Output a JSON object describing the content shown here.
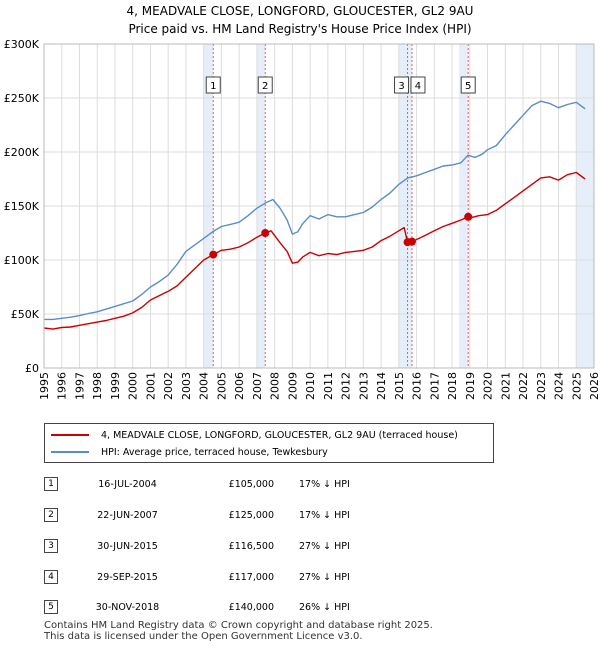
{
  "chart_data": {
    "type": "line",
    "title": "4, MEADVALE CLOSE, LONGFORD, GLOUCESTER, GL2 9AU",
    "subtitle": "Price paid vs. HM Land Registry's House Price Index (HPI)",
    "xlabel": "",
    "ylabel": "",
    "xlim": [
      1995,
      2026
    ],
    "ylim": [
      0,
      300000
    ],
    "x_ticks": [
      "1995",
      "1996",
      "1997",
      "1998",
      "1999",
      "2000",
      "2001",
      "2002",
      "2003",
      "2004",
      "2005",
      "2006",
      "2007",
      "2008",
      "2009",
      "2010",
      "2011",
      "2012",
      "2013",
      "2014",
      "2015",
      "2016",
      "2017",
      "2018",
      "2019",
      "2020",
      "2021",
      "2022",
      "2023",
      "2024",
      "2025",
      "2026"
    ],
    "y_ticks": [
      "£0",
      "£50K",
      "£100K",
      "£150K",
      "£200K",
      "£250K",
      "£300K"
    ],
    "y_tick_values": [
      0,
      50000,
      100000,
      150000,
      200000,
      250000,
      300000
    ],
    "grid": true,
    "series": [
      {
        "name": "4, MEADVALE CLOSE, LONGFORD, GLOUCESTER, GL2 9AU (terraced house)",
        "color": "#cc0000",
        "x": [
          1995.0,
          1995.5,
          1996.0,
          1996.5,
          1997.0,
          1997.5,
          1998.0,
          1998.5,
          1999.0,
          1999.5,
          2000.0,
          2000.5,
          2001.0,
          2001.5,
          2002.0,
          2002.5,
          2003.0,
          2003.5,
          2004.0,
          2004.54,
          2005.0,
          2005.5,
          2006.0,
          2006.5,
          2007.0,
          2007.47,
          2007.8,
          2008.3,
          2008.7,
          2009.0,
          2009.3,
          2009.6,
          2010.0,
          2010.5,
          2011.0,
          2011.5,
          2012.0,
          2012.5,
          2013.0,
          2013.5,
          2014.0,
          2014.5,
          2015.0,
          2015.3,
          2015.49,
          2015.5,
          2015.74,
          2016.0,
          2016.5,
          2017.0,
          2017.5,
          2018.0,
          2018.5,
          2018.91,
          2019.0,
          2019.5,
          2020.0,
          2020.5,
          2021.0,
          2021.5,
          2022.0,
          2022.5,
          2023.0,
          2023.5,
          2024.0,
          2024.5,
          2025.0,
          2025.5
        ],
        "y": [
          37000,
          36000,
          37500,
          38000,
          39500,
          41000,
          42500,
          44000,
          46000,
          48000,
          51000,
          56000,
          63000,
          67000,
          71000,
          76000,
          84000,
          92000,
          100000,
          105000,
          109000,
          110000,
          112000,
          116000,
          121000,
          125000,
          127000,
          116000,
          108000,
          97000,
          98000,
          103000,
          107000,
          104000,
          106000,
          105000,
          107000,
          108000,
          109000,
          112000,
          118000,
          122000,
          127000,
          130000,
          116500,
          116000,
          117000,
          119000,
          123000,
          127000,
          131000,
          134000,
          137000,
          140000,
          139000,
          141000,
          142000,
          146000,
          152000,
          158000,
          164000,
          170000,
          176000,
          177000,
          174000,
          179000,
          181000,
          175000
        ]
      },
      {
        "name": "HPI: Average price, terraced house, Tewkesbury",
        "color": "#5b8cc8",
        "x": [
          1995.0,
          1995.5,
          1996.0,
          1996.5,
          1997.0,
          1997.5,
          1998.0,
          1998.5,
          1999.0,
          1999.5,
          2000.0,
          2000.5,
          2001.0,
          2001.5,
          2002.0,
          2002.5,
          2003.0,
          2003.5,
          2004.0,
          2004.5,
          2005.0,
          2005.5,
          2006.0,
          2006.5,
          2007.0,
          2007.5,
          2007.9,
          2008.3,
          2008.7,
          2009.0,
          2009.3,
          2009.6,
          2010.0,
          2010.5,
          2011.0,
          2011.5,
          2012.0,
          2012.5,
          2013.0,
          2013.5,
          2014.0,
          2014.5,
          2015.0,
          2015.5,
          2016.0,
          2016.5,
          2017.0,
          2017.5,
          2018.0,
          2018.5,
          2018.9,
          2019.3,
          2019.7,
          2020.0,
          2020.5,
          2021.0,
          2021.5,
          2022.0,
          2022.5,
          2023.0,
          2023.5,
          2024.0,
          2024.5,
          2025.0,
          2025.5
        ],
        "y": [
          45000,
          45000,
          46000,
          47000,
          48500,
          50500,
          52000,
          54500,
          57000,
          59500,
          62000,
          68000,
          75000,
          80000,
          86000,
          96000,
          108000,
          114000,
          120000,
          126000,
          131000,
          133000,
          135000,
          141000,
          148000,
          153000,
          156000,
          148000,
          137000,
          124000,
          126000,
          134000,
          141000,
          138000,
          142000,
          140000,
          140000,
          142000,
          144000,
          149000,
          156000,
          162000,
          170000,
          176000,
          178000,
          181000,
          184000,
          187000,
          188000,
          190000,
          197000,
          195000,
          198000,
          202000,
          206000,
          216000,
          225000,
          234000,
          243000,
          247000,
          245000,
          241000,
          244000,
          246000,
          240000
        ]
      }
    ],
    "sales": [
      {
        "id": "1",
        "x": 2004.54,
        "y": 105000
      },
      {
        "id": "2",
        "x": 2007.47,
        "y": 125000
      },
      {
        "id": "3",
        "x": 2015.49,
        "y": 116500
      },
      {
        "id": "4",
        "x": 2015.74,
        "y": 117000
      },
      {
        "id": "5",
        "x": 2018.91,
        "y": 140000
      }
    ]
  },
  "legend": {
    "property_label": "4, MEADVALE CLOSE, LONGFORD, GLOUCESTER, GL2 9AU (terraced house)",
    "hpi_label": "HPI: Average price, terraced house, Tewkesbury",
    "property_color": "#cc0000",
    "hpi_color": "#5b8cc8"
  },
  "transactions": [
    {
      "num": "1",
      "date": "16-JUL-2004",
      "price": "£105,000",
      "hpi": "17% ↓ HPI"
    },
    {
      "num": "2",
      "date": "22-JUN-2007",
      "price": "£125,000",
      "hpi": "17% ↓ HPI"
    },
    {
      "num": "3",
      "date": "30-JUN-2015",
      "price": "£116,500",
      "hpi": "27% ↓ HPI"
    },
    {
      "num": "4",
      "date": "29-SEP-2015",
      "price": "£117,000",
      "hpi": "27% ↓ HPI"
    },
    {
      "num": "5",
      "date": "30-NOV-2018",
      "price": "£140,000",
      "hpi": "26% ↓ HPI"
    }
  ],
  "footer": {
    "line1": "Contains HM Land Registry data © Crown copyright and database right 2025.",
    "line2": "This data is licensed under the Open Government Licence v3.0."
  }
}
